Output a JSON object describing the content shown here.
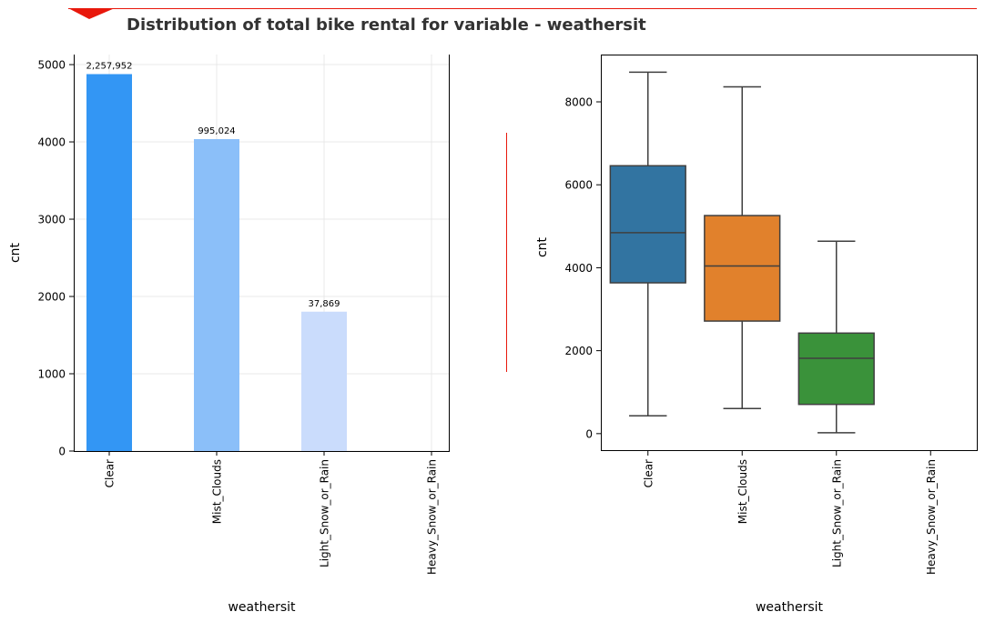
{
  "header": {
    "title": "Distribution of total bike rental for variable - weathersit",
    "accent_color": "#e8180c"
  },
  "chart_data": [
    {
      "type": "bar",
      "categories": [
        "Clear",
        "Mist_Clouds",
        "Light_Snow_or_Rain",
        "Heavy_Snow_or_Rain"
      ],
      "values": [
        4877,
        4036,
        1803,
        null
      ],
      "data_labels": [
        "2,257,952",
        "995,024",
        "37,869",
        ""
      ],
      "colors": [
        "#3396f4",
        "#8bbff9",
        "#cadcfc"
      ],
      "xlabel": "weathersit",
      "ylabel": "cnt",
      "ylim": [
        0,
        5130
      ],
      "yticks": [
        0,
        1000,
        2000,
        3000,
        4000,
        5000
      ],
      "grid": true
    },
    {
      "type": "box",
      "categories": [
        "Clear",
        "Mist_Clouds",
        "Light_Snow_or_Rain",
        "Heavy_Snow_or_Rain"
      ],
      "boxes": [
        {
          "whisker_low": 431,
          "q1": 3636,
          "median": 4844,
          "q3": 6459,
          "whisker_high": 8714,
          "color": "#3274a1"
        },
        {
          "whisker_low": 605,
          "q1": 2714,
          "median": 4041,
          "q3": 5258,
          "whisker_high": 8362,
          "color": "#e1812c"
        },
        {
          "whisker_low": 22,
          "q1": 705,
          "median": 1817,
          "q3": 2424,
          "whisker_high": 4639,
          "color": "#3a923a"
        },
        null
      ],
      "xlabel": "weathersit",
      "ylabel": "cnt",
      "ylim": [
        -420,
        9140
      ],
      "yticks": [
        0,
        2000,
        4000,
        6000,
        8000
      ],
      "grid": false
    }
  ]
}
